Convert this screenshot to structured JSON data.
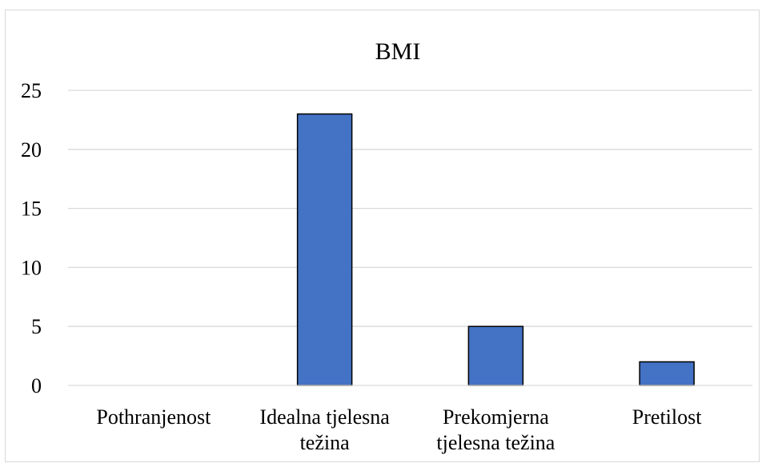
{
  "chart_data": {
    "type": "bar",
    "title": "BMI",
    "xlabel": "",
    "ylabel": "",
    "categories": [
      [
        "Pothranjenost"
      ],
      [
        "Idealna tjelesna",
        "težina"
      ],
      [
        "Prekomjerna",
        "tjelesna težina"
      ],
      [
        "Pretilost"
      ]
    ],
    "values": [
      0,
      23,
      5,
      2
    ],
    "ylim": [
      0,
      25
    ],
    "yticks": [
      0,
      5,
      10,
      15,
      20,
      25
    ],
    "grid": true,
    "legend": "none",
    "colors": {
      "bar_fill": "#4472c4",
      "bar_stroke": "#000000",
      "grid": "#d9d9d9",
      "axis": "#d9d9d9"
    }
  }
}
